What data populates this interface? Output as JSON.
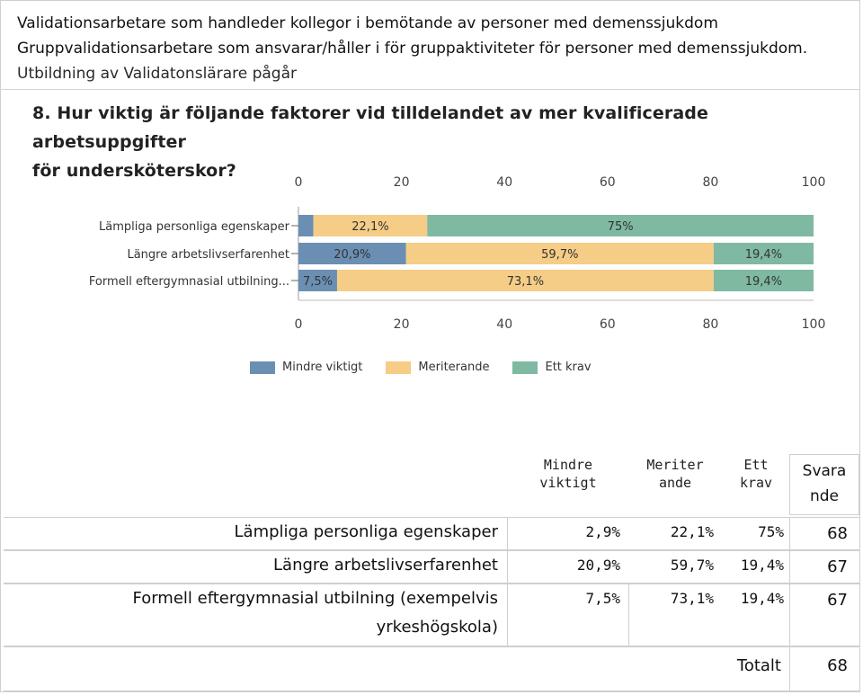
{
  "intro": {
    "line1": "Validationsarbetare som handleder kollegor i bemötande av personer med demenssjukdom",
    "line2": "Gruppvalidationsarbetare som ansvarar/håller i  för gruppaktiviteter för personer med demenssjukdom.",
    "line3": "Utbildning av Validatonslärare pågår"
  },
  "question": {
    "line1": "8. Hur viktig är följande faktorer vid tilldelandet av mer kvalificerade arbetsuppgifter",
    "line2": "för undersköterskor?"
  },
  "chart_data": {
    "type": "bar",
    "orientation": "horizontal",
    "stacked": true,
    "title": "8. Hur viktig är följande faktorer vid tilldelandet av mer kvalificerade arbetsuppgifter för undersköterskor?",
    "categories": [
      "Lämpliga personliga egenskaper",
      "Längre arbetslivserfarenhet",
      "Formell eftergymnasial utbilning..."
    ],
    "series": [
      {
        "name": "Mindre viktigt",
        "values": [
          2.9,
          20.9,
          7.5
        ],
        "labels": [
          "",
          "20,9%",
          "7,5%"
        ],
        "color": "#6b8fb3"
      },
      {
        "name": "Meriterande",
        "values": [
          22.1,
          59.7,
          73.1
        ],
        "labels": [
          "22,1%",
          "59,7%",
          "73,1%"
        ],
        "color": "#f5cd86"
      },
      {
        "name": "Ett krav",
        "values": [
          75,
          19.4,
          19.4
        ],
        "labels": [
          "75%",
          "19,4%",
          "19,4%"
        ],
        "color": "#7fb9a2"
      }
    ],
    "xlim": [
      0,
      100
    ],
    "ticks": [
      "0",
      "20",
      "40",
      "60",
      "80",
      "100"
    ],
    "legend": "bottom"
  },
  "table": {
    "headers": {
      "col1": [
        "Mindre",
        "viktigt"
      ],
      "col2": [
        "Meriter",
        "ande"
      ],
      "col3": [
        "Ett",
        "krav"
      ],
      "col4": [
        "Svara",
        "nde"
      ]
    },
    "rows": [
      {
        "label": "Lämpliga personliga egenskaper",
        "label2": "",
        "v1": "2,9%",
        "v2": "22,1%",
        "v3": "75%",
        "n": "68"
      },
      {
        "label": "Längre arbetslivserfarenhet",
        "label2": "",
        "v1": "20,9%",
        "v2": "59,7%",
        "v3": "19,4%",
        "n": "67"
      },
      {
        "label": "Formell eftergymnasial utbilning (exempelvis",
        "label2": "yrkeshögskola)",
        "v1": "7,5%",
        "v2": "73,1%",
        "v3": "19,4%",
        "n": "67"
      }
    ],
    "total_label": "Totalt",
    "total_value": "68"
  }
}
